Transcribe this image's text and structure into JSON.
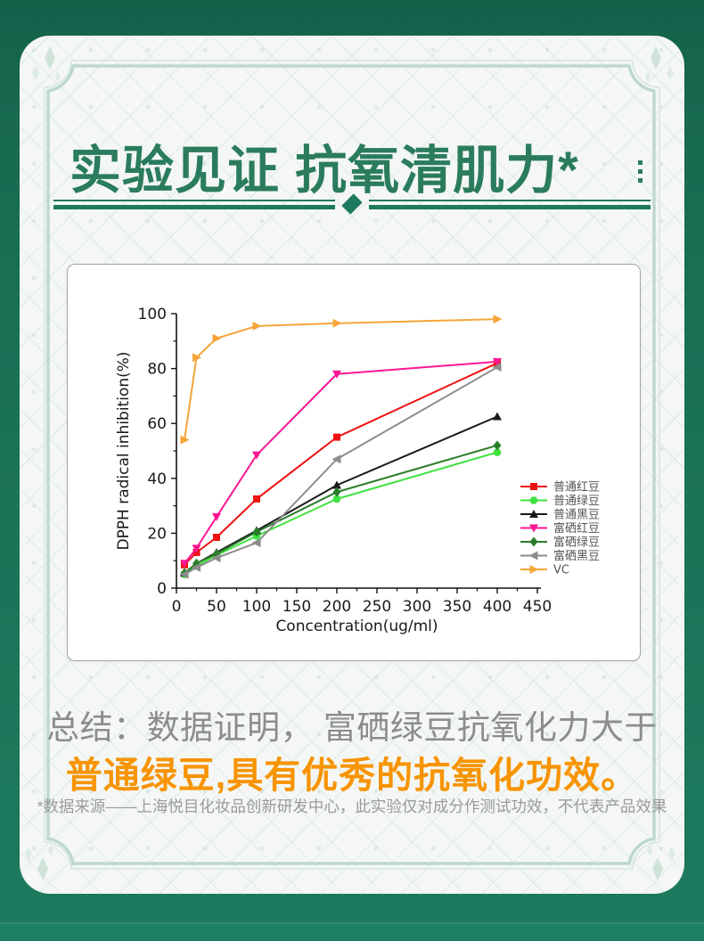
{
  "page": {
    "title": "实验见证 抗氧清肌力*",
    "summary_line1": "总结：数据证明， 富硒绿豆抗氧化力大于",
    "summary_line2": "普通绿豆,具有优秀的抗氧化功效。",
    "footnote": "*数据来源——上海悦目化妆品创新研发中心，此实验仅对成分作测试功效，不代表产品效果"
  },
  "colors": {
    "background_green": "#1b7257",
    "title_green": "#2a7c5d",
    "divider_green": "#1e7a5f",
    "summary_gray": "#8c8c8c",
    "highlight_orange": "#f79400",
    "footnote_gray": "#9a9a9a",
    "frame_pale_green": "#c5dcd2"
  },
  "icons": {
    "divider_gem": "diamond",
    "corner_decor": "sparkles",
    "title_side": "vertical-ellipsis"
  },
  "chart_data": {
    "type": "line",
    "title": "",
    "xlabel": "Concentration(ug/ml)",
    "ylabel": "DPPH radical inhibition(%)",
    "xlim": [
      0,
      450
    ],
    "ylim": [
      0,
      100
    ],
    "x_major_ticks": [
      0,
      50,
      100,
      150,
      200,
      250,
      300,
      350,
      400,
      450
    ],
    "x_minor_step": 25,
    "y_major_ticks": [
      0,
      20,
      40,
      60,
      80,
      100
    ],
    "y_minor_step": 10,
    "grid": false,
    "legend_position": "right-middle",
    "x": [
      10,
      25,
      50,
      100,
      200,
      400
    ],
    "series": [
      {
        "name": "普通红豆",
        "color": "#ee1111",
        "marker": "square",
        "values": [
          8.5,
          13,
          18.5,
          32.5,
          55,
          82
        ]
      },
      {
        "name": "普通绿豆",
        "color": "#3fe23f",
        "marker": "circle",
        "values": [
          5,
          8,
          12,
          19,
          32.5,
          49.5
        ]
      },
      {
        "name": "普通黑豆",
        "color": "#1a1a1a",
        "marker": "triangle-up",
        "values": [
          5.5,
          9,
          13,
          21,
          37.5,
          62.5
        ]
      },
      {
        "name": "富硒红豆",
        "color": "#fb1694",
        "marker": "triangle-down",
        "values": [
          9,
          14.5,
          26,
          48.5,
          78,
          82.5
        ]
      },
      {
        "name": "富硒绿豆",
        "color": "#2a7e2a",
        "marker": "diamond",
        "values": [
          5.5,
          9,
          12.5,
          20.5,
          35,
          52
        ]
      },
      {
        "name": "富硒黑豆",
        "color": "#8c8c8c",
        "marker": "triangle-left",
        "values": [
          5,
          7.5,
          11,
          16.5,
          47,
          80.5
        ]
      },
      {
        "name": "VC",
        "color": "#f5a53a",
        "marker": "triangle-right",
        "values": [
          54,
          84,
          91,
          95.5,
          96.5,
          98
        ]
      }
    ]
  }
}
